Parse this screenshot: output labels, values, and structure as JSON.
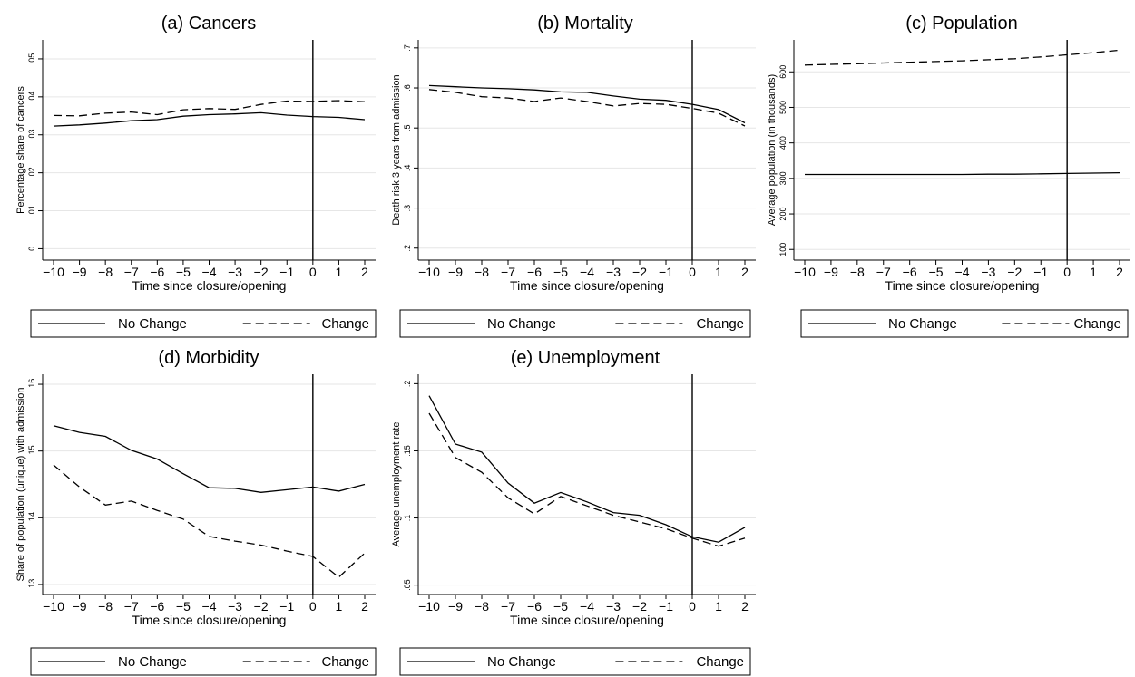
{
  "legend": {
    "no_change": "No Change",
    "change": "Change"
  },
  "chart_data": [
    {
      "type": "line",
      "title": "(a) Cancers",
      "xlabel": "Time since closure/opening",
      "ylabel": "Percentage share of cancers",
      "x": [
        -10,
        -9,
        -8,
        -7,
        -6,
        -5,
        -4,
        -3,
        -2,
        -1,
        0,
        1,
        2
      ],
      "x_ticks": [
        "−10",
        "−9",
        "−8",
        "−7",
        "−6",
        "−5",
        "−4",
        "−3",
        "−2",
        "−1",
        "0",
        "1",
        "2"
      ],
      "ylim": [
        -0.003,
        0.055
      ],
      "y_ticks": [
        "0",
        ".01",
        ".02",
        ".03",
        ".04",
        ".05"
      ],
      "y_tick_values": [
        0,
        0.01,
        0.02,
        0.03,
        0.04,
        0.05
      ],
      "grid": true,
      "vline": 0,
      "legend_position": "bottom",
      "series": [
        {
          "name": "No Change",
          "style": "solid",
          "values": [
            0.0323,
            0.0326,
            0.0331,
            0.0337,
            0.034,
            0.0349,
            0.0353,
            0.0355,
            0.0358,
            0.0352,
            0.0348,
            0.0346,
            0.034
          ]
        },
        {
          "name": "Change",
          "style": "dashed",
          "values": [
            0.0351,
            0.035,
            0.0357,
            0.036,
            0.0353,
            0.0366,
            0.0369,
            0.0367,
            0.038,
            0.0389,
            0.0388,
            0.039,
            0.0387
          ]
        }
      ]
    },
    {
      "type": "line",
      "title": "(b) Mortality",
      "xlabel": "Time since closure/opening",
      "ylabel": "Death risk 3 years from admission",
      "x": [
        -10,
        -9,
        -8,
        -7,
        -6,
        -5,
        -4,
        -3,
        -2,
        -1,
        0,
        1,
        2
      ],
      "x_ticks": [
        "−10",
        "−9",
        "−8",
        "−7",
        "−6",
        "−5",
        "−4",
        "−3",
        "−2",
        "−1",
        "0",
        "1",
        "2"
      ],
      "ylim": [
        0.17,
        0.72
      ],
      "y_ticks": [
        ".2",
        ".3",
        ".4",
        ".5",
        ".6",
        ".7"
      ],
      "y_tick_values": [
        0.2,
        0.3,
        0.4,
        0.5,
        0.6,
        0.7
      ],
      "grid": true,
      "vline": 0,
      "legend_position": "bottom",
      "series": [
        {
          "name": "No Change",
          "style": "solid",
          "values": [
            0.606,
            0.603,
            0.6,
            0.598,
            0.595,
            0.59,
            0.589,
            0.58,
            0.572,
            0.569,
            0.559,
            0.546,
            0.513
          ]
        },
        {
          "name": "Change",
          "style": "dashed",
          "values": [
            0.596,
            0.589,
            0.578,
            0.575,
            0.566,
            0.575,
            0.566,
            0.555,
            0.561,
            0.559,
            0.549,
            0.537,
            0.505
          ]
        }
      ]
    },
    {
      "type": "line",
      "title": "(c) Population",
      "xlabel": "Time since closure/opening",
      "ylabel": "Average population (in thousands)",
      "x": [
        -10,
        -9,
        -8,
        -7,
        -6,
        -5,
        -4,
        -3,
        -2,
        -1,
        0,
        1,
        2
      ],
      "x_ticks": [
        "−10",
        "−9",
        "−8",
        "−7",
        "−6",
        "−5",
        "−4",
        "−3",
        "−2",
        "−1",
        "0",
        "1",
        "2"
      ],
      "ylim": [
        70,
        690
      ],
      "y_ticks": [
        "100",
        "200",
        "300",
        "400",
        "500",
        "600"
      ],
      "y_tick_values": [
        100,
        200,
        300,
        400,
        500,
        600
      ],
      "grid": true,
      "vline": 0,
      "legend_position": "bottom",
      "series": [
        {
          "name": "No Change",
          "style": "solid",
          "values": [
            311,
            311,
            311,
            311,
            311,
            311,
            311,
            312,
            312,
            313,
            314,
            315,
            316
          ]
        },
        {
          "name": "Change",
          "style": "dashed",
          "values": [
            619,
            621,
            623,
            625,
            627,
            629,
            631,
            634,
            637,
            642,
            648,
            654,
            661
          ]
        }
      ]
    },
    {
      "type": "line",
      "title": "(d) Morbidity",
      "xlabel": "Time since closure/opening",
      "ylabel": "Share of population (unique) with admission",
      "x": [
        -10,
        -9,
        -8,
        -7,
        -6,
        -5,
        -4,
        -3,
        -2,
        -1,
        0,
        1,
        2
      ],
      "x_ticks": [
        "−10",
        "−9",
        "−8",
        "−7",
        "−6",
        "−5",
        "−4",
        "−3",
        "−2",
        "−1",
        "0",
        "1",
        "2"
      ],
      "ylim": [
        0.1285,
        0.1615
      ],
      "y_ticks": [
        ".13",
        ".14",
        ".15",
        ".16"
      ],
      "y_tick_values": [
        0.13,
        0.14,
        0.15,
        0.16
      ],
      "grid": true,
      "vline": 0,
      "legend_position": "bottom",
      "series": [
        {
          "name": "No Change",
          "style": "solid",
          "values": [
            0.1538,
            0.1528,
            0.1522,
            0.1501,
            0.1488,
            0.1466,
            0.1445,
            0.1444,
            0.1438,
            0.1442,
            0.1446,
            0.144,
            0.145
          ]
        },
        {
          "name": "Change",
          "style": "dashed",
          "values": [
            0.1479,
            0.1446,
            0.1419,
            0.1425,
            0.1411,
            0.1398,
            0.1372,
            0.1365,
            0.1359,
            0.135,
            0.1342,
            0.1311,
            0.1347
          ]
        }
      ]
    },
    {
      "type": "line",
      "title": "(e) Unemployment",
      "xlabel": "Time since closure/opening",
      "ylabel": "Average unemployment rate",
      "x": [
        -10,
        -9,
        -8,
        -7,
        -6,
        -5,
        -4,
        -3,
        -2,
        -1,
        0,
        1,
        2
      ],
      "x_ticks": [
        "−10",
        "−9",
        "−8",
        "−7",
        "−6",
        "−5",
        "−4",
        "−3",
        "−2",
        "−1",
        "0",
        "1",
        "2"
      ],
      "ylim": [
        0.043,
        0.207
      ],
      "y_ticks": [
        ".05",
        ".1",
        ".15",
        ".2"
      ],
      "y_tick_values": [
        0.05,
        0.1,
        0.15,
        0.2
      ],
      "grid": true,
      "vline": 0,
      "legend_position": "bottom",
      "series": [
        {
          "name": "No Change",
          "style": "solid",
          "values": [
            0.191,
            0.155,
            0.149,
            0.126,
            0.111,
            0.119,
            0.112,
            0.104,
            0.102,
            0.095,
            0.086,
            0.082,
            0.093
          ]
        },
        {
          "name": "Change",
          "style": "dashed",
          "values": [
            0.178,
            0.145,
            0.134,
            0.115,
            0.103,
            0.116,
            0.109,
            0.102,
            0.097,
            0.092,
            0.085,
            0.079,
            0.085
          ]
        }
      ]
    }
  ]
}
